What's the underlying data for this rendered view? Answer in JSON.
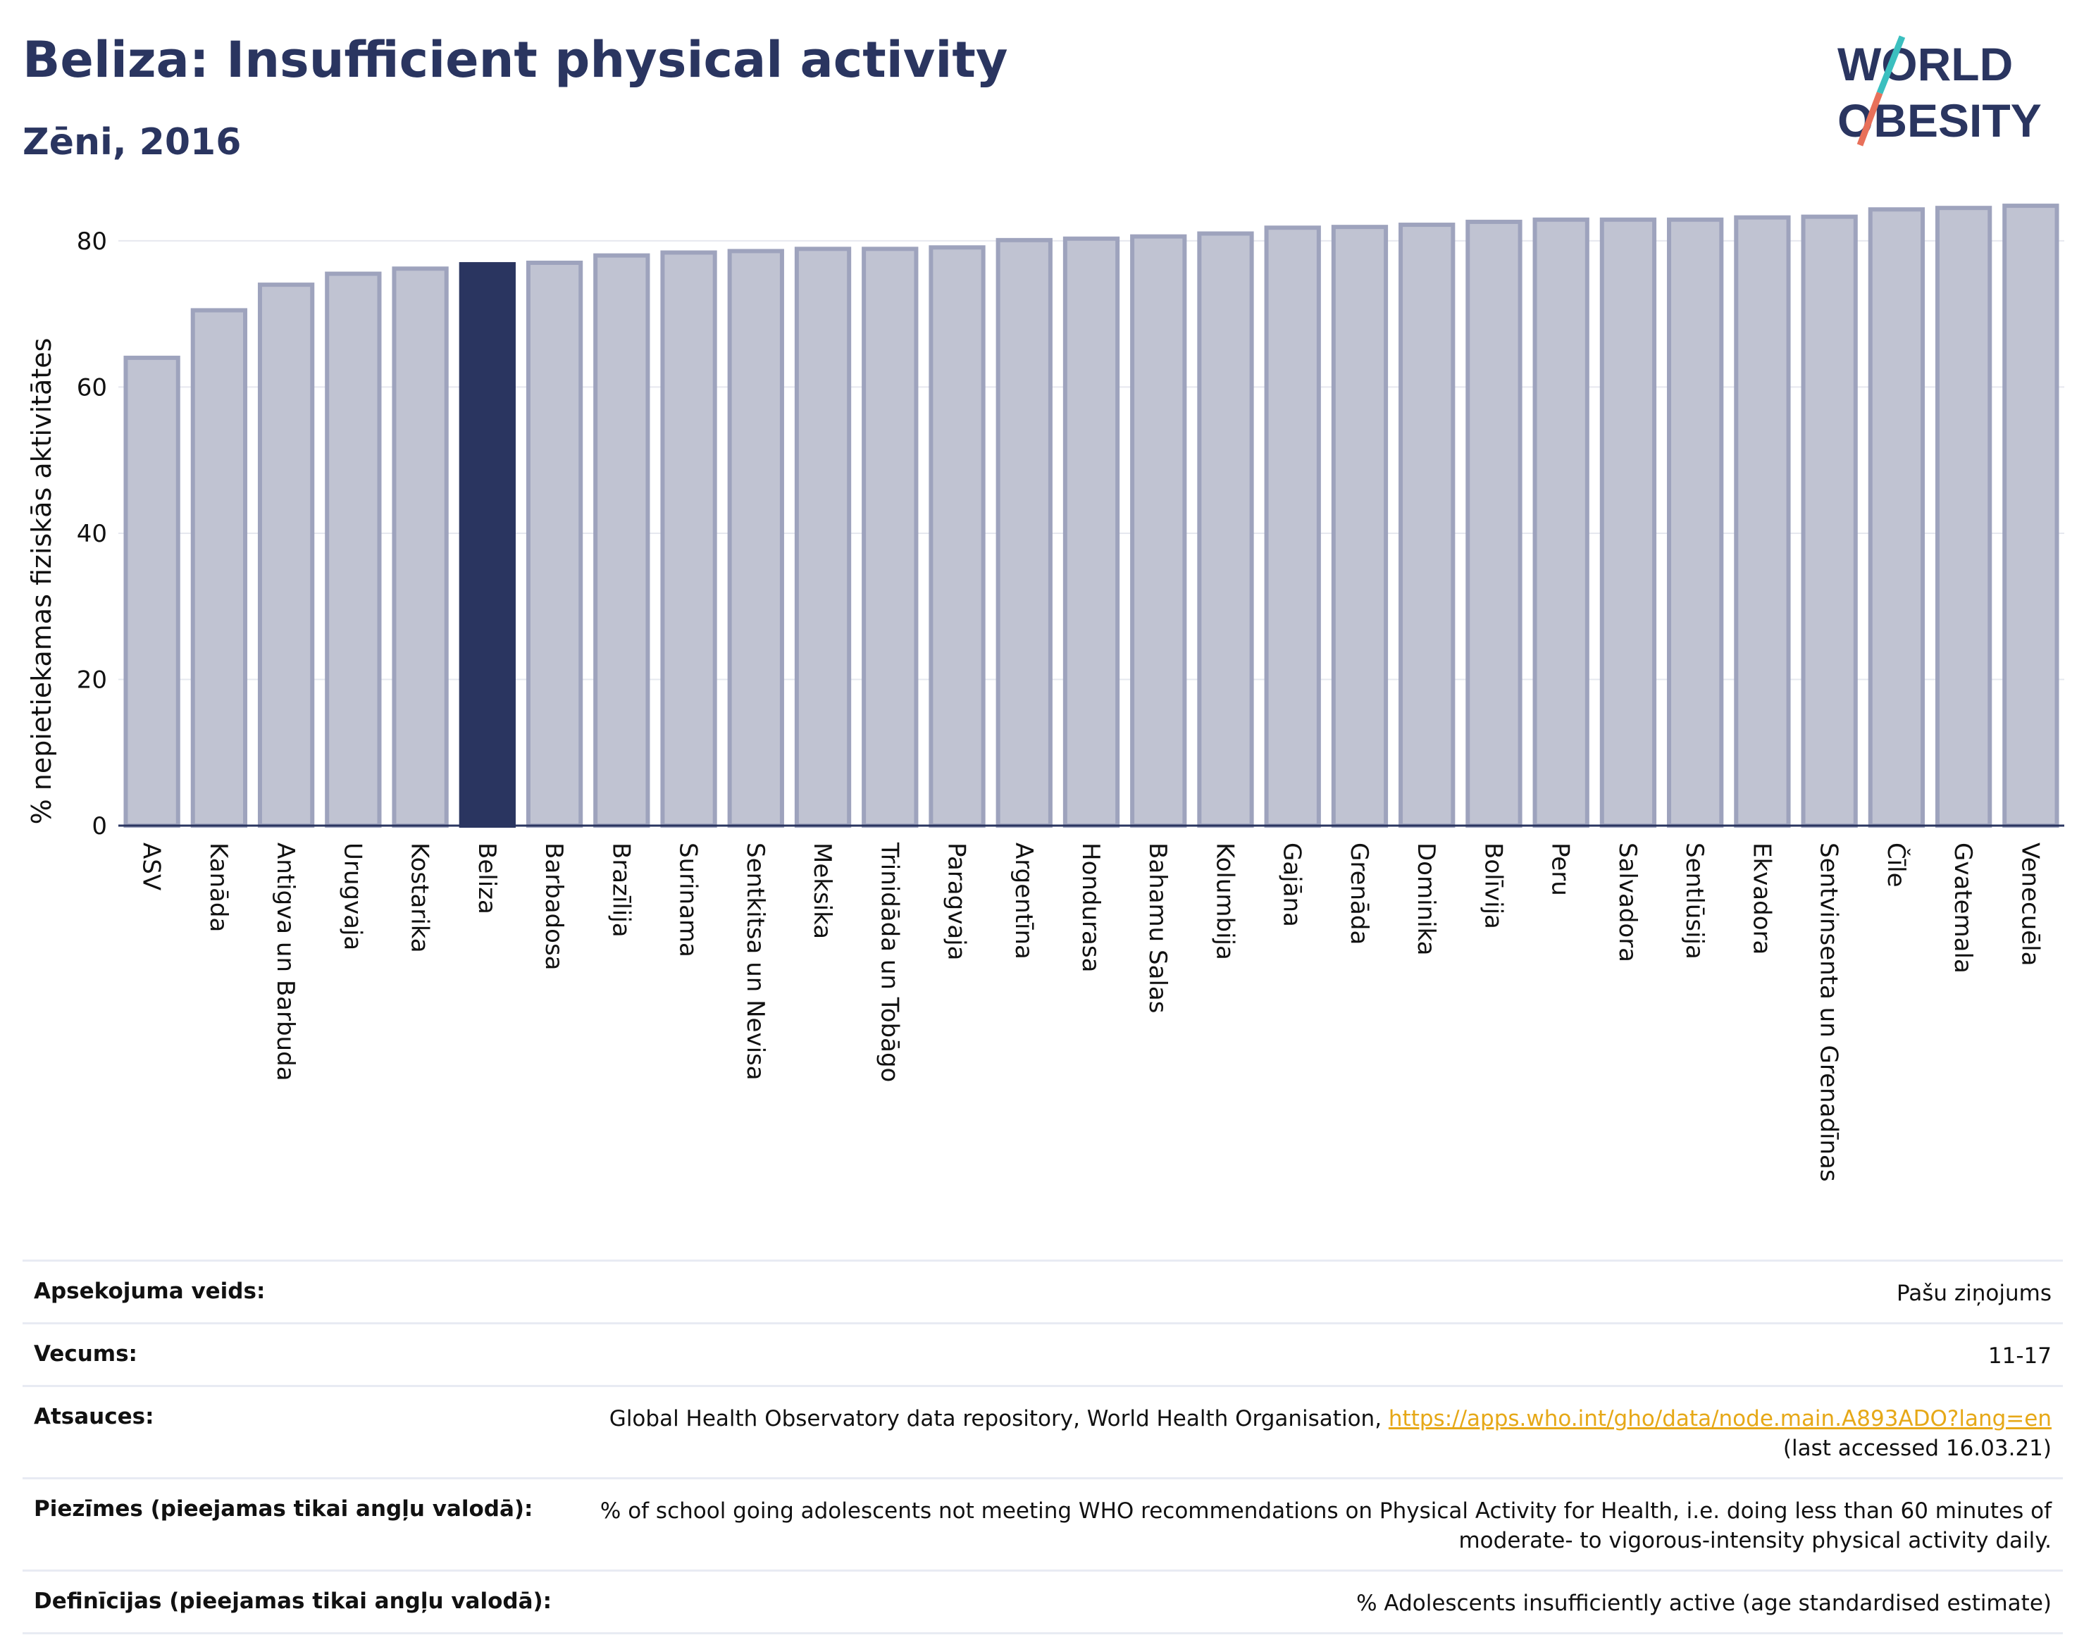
{
  "title": "Beliza: Insufficient physical activity",
  "subtitle": "Zēni, 2016",
  "logo": {
    "line1": "WORLD",
    "line2": "OBESITY"
  },
  "colors": {
    "highlight": "#2a3560",
    "bar_fill": "#c0c3d2",
    "bar_stroke": "#9ea3bd",
    "text": "#2a3560",
    "accent": "#e6a817"
  },
  "chart_data": {
    "type": "bar",
    "ylabel": "% nepietiekamas fiziskās aktivitātes",
    "xlabel": "",
    "ylim": [
      0,
      85
    ],
    "yticks": [
      0,
      20,
      40,
      60,
      80
    ],
    "grid": true,
    "highlight": "Beliza",
    "categories": [
      "ASV",
      "Kanāda",
      "Antigva un Barbuda",
      "Urugvaja",
      "Kostarika",
      "Beliza",
      "Barbadosa",
      "Brazīlija",
      "Surinama",
      "Sentkitsa un Nevisa",
      "Meksika",
      "Trinidāda un Tobāgo",
      "Paragvaja",
      "Argentīna",
      "Hondurasa",
      "Bahamu Salas",
      "Kolumbija",
      "Gajāna",
      "Grenāda",
      "Dominika",
      "Bolīvija",
      "Peru",
      "Salvadora",
      "Sentlūsija",
      "Ekvadora",
      "Sentvinsenta un Grenadīnas",
      "Čīle",
      "Gvatemala",
      "Venecuēla"
    ],
    "values": [
      64.0,
      70.5,
      74.0,
      75.5,
      76.2,
      76.8,
      77.0,
      78.0,
      78.4,
      78.6,
      78.9,
      78.9,
      79.1,
      80.1,
      80.3,
      80.6,
      81.0,
      81.8,
      81.9,
      82.2,
      82.6,
      82.9,
      82.9,
      82.9,
      83.2,
      83.3,
      84.3,
      84.5,
      84.8
    ]
  },
  "meta": [
    {
      "label": "Apsekojuma veids:",
      "value": "Pašu ziņojums"
    },
    {
      "label": "Vecums:",
      "value": "11-17"
    },
    {
      "label": "Atsauces:",
      "value": "Global Health Observatory data repository, World Health Organisation, ",
      "link": "https://apps.who.int/gho/data/node.main.A893ADO?lang=en",
      "value2": "(last accessed 16.03.21)"
    },
    {
      "label": "Piezīmes (pieejamas tikai angļu valodā):",
      "value": "% of school going adolescents not meeting WHO recommendations on Physical Activity for Health, i.e. doing less than 60 minutes of",
      "value2": "moderate- to vigorous-intensity physical activity daily."
    },
    {
      "label": "Definīcijas (pieejamas tikai angļu valodā):",
      "value": "% Adolescents insufficiently active (age standardised estimate)"
    }
  ]
}
